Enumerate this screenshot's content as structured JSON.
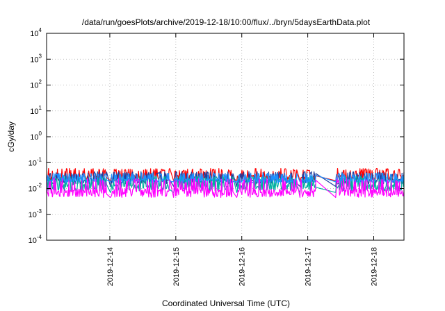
{
  "chart_data": {
    "type": "line",
    "title": "/data/run/goesPlots/archive/2019-12-18/10:00/flux/../bryn/5daysEarthData.plot",
    "xlabel": "Coordinated Universal Time (UTC)",
    "ylabel": "cGy/day",
    "yscale": "log",
    "ylim": [
      0.0001,
      10000
    ],
    "y_ticks": [
      {
        "mant": "10",
        "exp": "-4",
        "value": 0.0001
      },
      {
        "mant": "10",
        "exp": "-3",
        "value": 0.001
      },
      {
        "mant": "10",
        "exp": "-2",
        "value": 0.01
      },
      {
        "mant": "10",
        "exp": "-1",
        "value": 0.1
      },
      {
        "mant": "10",
        "exp": "0",
        "value": 1
      },
      {
        "mant": "10",
        "exp": "1",
        "value": 10
      },
      {
        "mant": "10",
        "exp": "2",
        "value": 100
      },
      {
        "mant": "10",
        "exp": "3",
        "value": 1000
      },
      {
        "mant": "10",
        "exp": "4",
        "value": 10000
      }
    ],
    "xlim": [
      "2019-12-13 01:00",
      "2019-12-18 11:00"
    ],
    "x_ticks": [
      "2019-12-14",
      "2019-12-15",
      "2019-12-16",
      "2019-12-17",
      "2019-12-18"
    ],
    "grid": true,
    "data_gaps": [
      [
        "2019-12-13 23:00",
        "2019-12-14 00:00"
      ],
      [
        "2019-12-14 22:00",
        "2019-12-14 23:00"
      ],
      [
        "2019-12-15 21:00",
        "2019-12-15 22:00"
      ],
      [
        "2019-12-16 20:00",
        "2019-12-16 21:00"
      ],
      [
        "2019-12-17 03:00",
        "2019-12-17 10:00"
      ]
    ],
    "series": [
      {
        "color": "#ff0000",
        "low": 0.02,
        "high": 0.06,
        "gap_level": 0.02
      },
      {
        "color": "#1f3f9f",
        "low": 0.015,
        "high": 0.045,
        "gap_level": 0.012
      },
      {
        "color": "#00b0a0",
        "low": 0.008,
        "high": 0.03,
        "gap_level": 0.007
      },
      {
        "color": "#1e90ff",
        "low": 0.016,
        "high": 0.04,
        "gap_level": 0.018
      },
      {
        "color": "#ff00ff",
        "low": 0.0045,
        "high": 0.025,
        "gap_level": 0.0045
      }
    ]
  }
}
